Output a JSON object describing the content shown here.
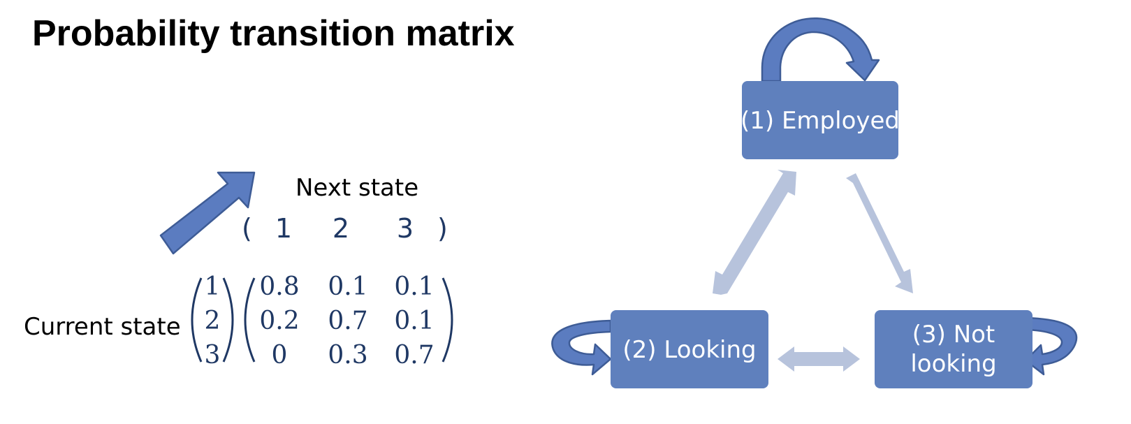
{
  "title": "Probability transition matrix",
  "matrix": {
    "column_header": "Next state",
    "row_header": "Current state",
    "open_paren": "(",
    "close_paren": ")",
    "column_labels": [
      "1",
      "2",
      "3"
    ],
    "row_labels": [
      "1",
      "2",
      "3"
    ],
    "values": [
      [
        "0.8",
        "0.1",
        "0.1"
      ],
      [
        "0.2",
        "0.7",
        "0.1"
      ],
      [
        "0",
        "0.3",
        "0.7"
      ]
    ]
  },
  "diagram": {
    "states": [
      {
        "id": "employed",
        "label_lines": [
          "(1) Employed"
        ]
      },
      {
        "id": "looking",
        "label_lines": [
          "(2) Looking"
        ]
      },
      {
        "id": "not-looking",
        "label_lines": [
          "(3) Not",
          "looking"
        ]
      }
    ]
  },
  "colors": {
    "box_fill": "#5f80bd",
    "box_text": "#ffffff",
    "arrow_fill": "#5b7cc0",
    "arrow_stroke": "#3e5c96",
    "faint_arrow": "#b7c3dc",
    "matrix_text": "#1f3864"
  },
  "icons": {
    "self_loop": "curved-loop-arrow-icon",
    "corner_arrow": "diagonal-arrow-icon",
    "transition": "double-headed-arrow-icon"
  }
}
